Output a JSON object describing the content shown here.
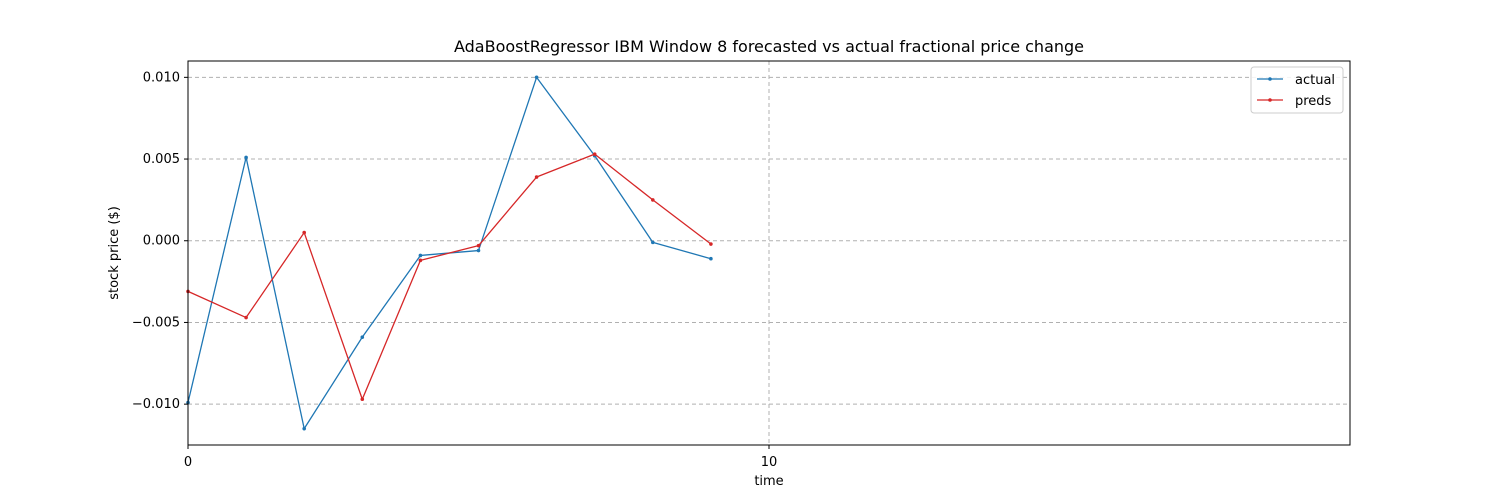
{
  "chart_data": {
    "type": "line",
    "title": "AdaBoostRegressor IBM Window 8 forecasted vs actual fractional price change",
    "xlabel": "time",
    "ylabel": "stock price ($)",
    "xlim": [
      0,
      20
    ],
    "ylim": [
      -0.0125,
      0.011
    ],
    "x_ticks": [
      0,
      10
    ],
    "x_tick_labels": [
      "0",
      "10"
    ],
    "y_ticks": [
      -0.01,
      -0.005,
      0.0,
      0.005,
      0.01
    ],
    "y_tick_labels": [
      "−0.010",
      "−0.005",
      "0.000",
      "0.005",
      "0.010"
    ],
    "grid": true,
    "legend_position": "top-right",
    "x": [
      0,
      1,
      2,
      3,
      4,
      5,
      6,
      7,
      8,
      9
    ],
    "series": [
      {
        "name": "actual",
        "color": "#1f77b4",
        "values": [
          -0.0099,
          0.0051,
          -0.0115,
          -0.0059,
          -0.0009,
          -0.0006,
          0.01,
          0.0052,
          -0.0001,
          -0.0011
        ]
      },
      {
        "name": "preds",
        "color": "#d62728",
        "values": [
          -0.0031,
          -0.0047,
          0.0005,
          -0.0097,
          -0.0012,
          -0.0003,
          0.0039,
          0.0053,
          0.0025,
          -0.0002
        ]
      }
    ]
  }
}
